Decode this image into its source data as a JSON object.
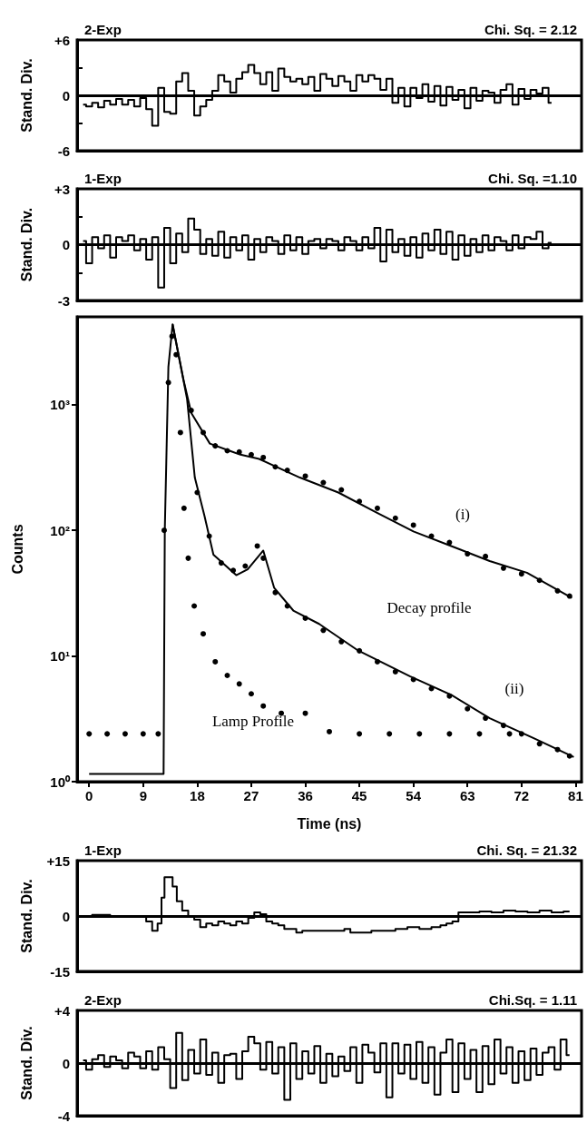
{
  "chart_data": [
    {
      "type": "step",
      "title": "2-Exp",
      "subtitle": "Chi. Sq. = 2.12",
      "ylabel": "Stand. Div.",
      "xlim": [
        -2,
        82
      ],
      "ylim": [
        -6,
        6
      ],
      "yticks": [
        {
          "value": 6,
          "label": "+6"
        },
        {
          "value": 3,
          "label": null
        },
        0,
        {
          "value": -3,
          "label": null
        },
        -6
      ],
      "tick_labels": "y",
      "grid": false,
      "ref_lines": [
        {
          "axis": "y",
          "value": 0,
          "color": "#000000"
        }
      ],
      "x": [
        -1,
        0,
        1,
        2,
        3,
        4,
        5,
        6,
        7,
        8,
        9,
        10,
        11,
        12,
        13,
        14,
        15,
        16,
        17,
        18,
        19,
        20,
        21,
        22,
        23,
        24,
        25,
        26,
        27,
        28,
        29,
        30,
        31,
        32,
        33,
        34,
        35,
        36,
        37,
        38,
        39,
        40,
        41,
        42,
        43,
        44,
        45,
        46,
        47,
        48,
        49,
        50,
        51,
        52,
        53,
        54,
        55,
        56,
        57,
        58,
        59,
        60,
        61,
        62,
        63,
        64,
        65,
        66,
        67,
        68,
        69,
        70,
        71,
        72,
        73,
        74,
        75,
        76,
        77
      ],
      "series": [
        {
          "color": "#000000",
          "values": [
            -1,
            -1.2,
            -0.8,
            -1.3,
            -0.6,
            -1,
            -0.4,
            -1,
            -0.5,
            -1.2,
            -0.3,
            -1.5,
            -3.3,
            0.8,
            -1.8,
            -2,
            1.5,
            2.4,
            0.5,
            -2.2,
            -1.2,
            -0.5,
            0.5,
            2.2,
            1.5,
            0.3,
            1.8,
            2.5,
            3.3,
            2.4,
            1.2,
            2.5,
            0.5,
            2.9,
            2,
            1.5,
            1.8,
            1.2,
            2,
            0.5,
            2.3,
            1.8,
            1,
            2.1,
            1.5,
            0.5,
            2.2,
            1.5,
            2.2,
            1.8,
            0.6,
            1.8,
            -0.8,
            0.8,
            -1.2,
            0.8,
            -0.3,
            1.2,
            -0.7,
            1,
            -1.1,
            0.9,
            -0.5,
            0.6,
            -1.4,
            0.8,
            -0.6,
            0.5,
            0.3,
            -0.8,
            0.6,
            1.2,
            -1,
            0.7,
            -0.4,
            0.6,
            0.2,
            0.8,
            -0.8
          ]
        }
      ]
    },
    {
      "type": "step",
      "title": "1-Exp",
      "subtitle": "Chi. Sq. =1.10",
      "ylabel": "Stand. Div.",
      "xlim": [
        -2,
        82
      ],
      "ylim": [
        -3,
        3
      ],
      "yticks": [
        {
          "value": 3,
          "label": "+3"
        },
        {
          "value": 1.5,
          "label": null
        },
        0,
        {
          "value": -1.5,
          "label": null
        },
        -3
      ],
      "tick_labels": "y",
      "grid": false,
      "ref_lines": [
        {
          "axis": "y",
          "value": 0,
          "color": "#000000"
        }
      ],
      "x": [
        -1,
        0,
        1,
        2,
        3,
        4,
        5,
        6,
        7,
        8,
        9,
        10,
        11,
        12,
        13,
        14,
        15,
        16,
        17,
        18,
        19,
        20,
        21,
        22,
        23,
        24,
        25,
        26,
        27,
        28,
        29,
        30,
        31,
        32,
        33,
        34,
        35,
        36,
        37,
        38,
        39,
        40,
        41,
        42,
        43,
        44,
        45,
        46,
        47,
        48,
        49,
        50,
        51,
        52,
        53,
        54,
        55,
        56,
        57,
        58,
        59,
        60,
        61,
        62,
        63,
        64,
        65,
        66,
        67,
        68,
        69,
        70,
        71,
        72,
        73,
        74,
        75,
        76,
        77
      ],
      "series": [
        {
          "color": "#000000",
          "values": [
            0.2,
            -1,
            0.4,
            -0.2,
            0.5,
            -0.7,
            0.4,
            0.2,
            0.5,
            -0.3,
            0.3,
            -0.8,
            0.4,
            -2.3,
            0.9,
            -1,
            0.6,
            -0.4,
            1.4,
            0.8,
            -0.5,
            0.3,
            -0.6,
            0.7,
            -0.7,
            0.4,
            -0.3,
            0.5,
            -0.8,
            0.3,
            -0.4,
            0.4,
            0.2,
            -0.5,
            0.5,
            -0.3,
            0.4,
            -0.5,
            0.2,
            0.3,
            -0.2,
            0.3,
            0.2,
            -0.3,
            0.4,
            0.2,
            -0.3,
            0.4,
            -0.2,
            0.9,
            -0.9,
            0.8,
            -0.4,
            0.3,
            -0.6,
            0.4,
            -0.7,
            0.6,
            -0.3,
            0.8,
            -0.5,
            0.7,
            -0.8,
            0.5,
            -0.6,
            0.3,
            -0.4,
            0.5,
            -0.3,
            0.4,
            0.2,
            -0.3,
            0.5,
            -0.2,
            0.4,
            0.3,
            0.7,
            -0.2,
            0.1
          ]
        }
      ]
    },
    {
      "type": "line",
      "xlabel": "Time (ns)",
      "ylabel": "Counts",
      "log": "y",
      "xlim": [
        -2,
        82
      ],
      "ylim": [
        1,
        5000
      ],
      "xticks": [
        0,
        9,
        18,
        27,
        36,
        45,
        54,
        63,
        72,
        81
      ],
      "yticks": [
        {
          "value": 1,
          "label": "10⁰"
        },
        {
          "value": 10,
          "label": "10¹"
        },
        {
          "value": 100,
          "label": "10²"
        },
        {
          "value": 1000,
          "label": "10³"
        }
      ],
      "grid": false,
      "annotations": [
        "(i)",
        "(ii)",
        "Decay profile",
        "Lamp Profile"
      ],
      "series": [
        {
          "type": "scatter",
          "marker": "circle",
          "color": "#000000",
          "x": [
            0,
            3,
            6,
            9,
            11.5,
            12.5,
            13.2,
            13.8,
            14.5,
            15.2,
            15.8,
            16.5,
            17.5,
            19,
            21,
            23,
            25,
            27,
            29,
            32,
            36,
            40,
            45,
            50,
            55,
            60,
            65,
            70
          ],
          "values": [
            2.4,
            2.4,
            2.4,
            2.4,
            2.4,
            100,
            1500,
            3500,
            2500,
            600,
            150,
            60,
            25,
            15,
            9,
            7,
            6,
            5,
            4,
            3.5,
            3.5,
            2.5,
            2.4,
            2.4,
            2.4,
            2.4,
            2.4,
            2.4
          ]
        },
        {
          "type": "scatter",
          "marker": "circle",
          "color": "#000000",
          "x": [
            17,
            19,
            21,
            23,
            25,
            27,
            29,
            31,
            33,
            36,
            39,
            42,
            45,
            48,
            51,
            54,
            57,
            60,
            63,
            66,
            69,
            72,
            75,
            78,
            80
          ],
          "values": [
            900,
            600,
            470,
            430,
            420,
            400,
            380,
            320,
            300,
            270,
            240,
            210,
            170,
            150,
            125,
            110,
            90,
            80,
            65,
            62,
            50,
            45,
            40,
            33,
            30
          ]
        },
        {
          "type": "scatter",
          "marker": "circle",
          "color": "#000000",
          "x": [
            18,
            20,
            22,
            24,
            26,
            28,
            29,
            31,
            33,
            36,
            39,
            42,
            45,
            48,
            51,
            54,
            57,
            60,
            63,
            66,
            69,
            72,
            75,
            78,
            80
          ],
          "values": [
            200,
            90,
            55,
            48,
            52,
            75,
            60,
            32,
            25,
            20,
            16,
            13,
            11,
            9,
            7.5,
            6.5,
            5.5,
            4.8,
            3.8,
            3.2,
            2.8,
            2.4,
            2,
            1.8,
            1.6
          ]
        },
        {
          "type": "line",
          "color": "#000000",
          "x": [
            0,
            12.4,
            12.6,
            13.2,
            13.9,
            15.7,
            17,
            20.1,
            25.2,
            28.3,
            35.1,
            41.5,
            47.8,
            54,
            60.3,
            66.7,
            72.9,
            80.4
          ],
          "values": [
            1.15,
            1.15,
            100,
            2000,
            4360,
            1590,
            860,
            490,
            400,
            370,
            263,
            200,
            139,
            98,
            75,
            57,
            46,
            29
          ]
        },
        {
          "type": "line",
          "color": "#000000",
          "x": [
            13.9,
            16.3,
            17.6,
            19.2,
            20.7,
            24.5,
            26.4,
            29,
            30.8,
            34,
            38.3,
            44.6,
            53.4,
            60.3,
            66.7,
            74.2,
            80.7
          ],
          "values": [
            4360,
            1120,
            263,
            131,
            64,
            44,
            49,
            69,
            35,
            23,
            18,
            11.2,
            6.9,
            4.9,
            3.2,
            2.2,
            1.57
          ]
        }
      ]
    },
    {
      "type": "step",
      "title": "1-Exp",
      "subtitle": "Chi. Sq. = 21.32",
      "ylabel": "Stand. Div.",
      "xlim": [
        -2,
        82
      ],
      "ylim": [
        -15,
        15
      ],
      "yticks": [
        {
          "value": 15,
          "label": "+15"
        },
        0,
        -15
      ],
      "tick_labels": "y",
      "grid": false,
      "ref_lines": [
        {
          "axis": "y",
          "value": 0,
          "color": "#000000"
        }
      ],
      "x": [
        -1,
        2,
        5,
        9,
        10,
        11,
        11.8,
        12.3,
        12.8,
        13.6,
        14.2,
        15,
        16,
        17,
        18,
        19,
        20,
        21,
        22,
        23,
        24,
        25,
        26,
        27,
        28,
        29,
        30,
        31,
        32,
        33,
        34,
        35,
        36,
        38,
        40,
        42,
        43,
        44,
        46,
        48,
        50,
        52,
        54,
        56,
        58,
        59,
        60,
        61,
        62,
        64,
        66,
        68,
        70,
        72,
        74,
        76,
        78,
        80
      ],
      "series": [
        {
          "color": "#000000",
          "values": [
            0,
            0.3,
            0,
            0,
            -1.5,
            -4,
            -2,
            5,
            10.5,
            10.5,
            8,
            4,
            1.5,
            0,
            -1,
            -3,
            -2,
            -2.5,
            -1.5,
            -2,
            -2.5,
            -1.5,
            -2,
            -0.5,
            1,
            0.5,
            -1.5,
            -2,
            -2.5,
            -3.5,
            -3.5,
            -4.5,
            -4,
            -4,
            -4,
            -4,
            -3.5,
            -4.5,
            -4.5,
            -4,
            -4,
            -3.5,
            -3,
            -3.5,
            -3,
            -2.5,
            -2,
            -1.5,
            1,
            1,
            1.2,
            1,
            1.5,
            1.2,
            1,
            1.5,
            1,
            1.2
          ]
        }
      ]
    },
    {
      "type": "step",
      "title": "2-Exp",
      "subtitle": "Chi.Sq. = 1.11",
      "ylabel": "Stand. Div.",
      "xlim": [
        -2,
        82
      ],
      "ylim": [
        -4,
        4
      ],
      "yticks": [
        {
          "value": 4,
          "label": "+4"
        },
        0,
        -4
      ],
      "tick_labels": "y",
      "grid": false,
      "ref_lines": [
        {
          "axis": "y",
          "value": 0,
          "color": "#000000"
        }
      ],
      "x": [
        -1,
        0,
        1,
        2,
        3,
        4,
        5,
        6,
        7,
        8,
        9,
        10,
        11,
        12,
        13,
        14,
        15,
        16,
        17,
        18,
        19,
        20,
        21,
        22,
        23,
        24,
        25,
        26,
        27,
        28,
        29,
        30,
        31,
        32,
        33,
        34,
        35,
        36,
        37,
        38,
        39,
        40,
        41,
        42,
        43,
        44,
        45,
        46,
        47,
        48,
        49,
        50,
        51,
        52,
        53,
        54,
        55,
        56,
        57,
        58,
        59,
        60,
        61,
        62,
        63,
        64,
        65,
        66,
        67,
        68,
        69,
        70,
        71,
        72,
        73,
        74,
        75,
        76,
        77,
        78,
        79,
        80
      ],
      "series": [
        {
          "color": "#000000",
          "values": [
            0.2,
            -0.5,
            0.3,
            0.6,
            -0.3,
            0.5,
            0.2,
            -0.4,
            0.8,
            0.5,
            -0.4,
            0.9,
            -0.5,
            1.2,
            0.3,
            -1.9,
            2.3,
            -1.3,
            1,
            -0.8,
            1.8,
            -0.9,
            0.8,
            -1.5,
            0.6,
            0.7,
            -1.2,
            0.9,
            2,
            1.5,
            -0.5,
            1.6,
            -0.8,
            1.2,
            -2.8,
            1.5,
            -1.2,
            0.9,
            -0.8,
            1.3,
            -1.5,
            0.7,
            -1,
            0.5,
            -0.6,
            1.2,
            -1.5,
            1.4,
            0.8,
            -0.7,
            1.5,
            -2.6,
            1.5,
            -0.8,
            1.4,
            -1.2,
            1.6,
            -1.5,
            1.2,
            -2.4,
            0.8,
            1.8,
            -2.2,
            1.5,
            -1.2,
            1,
            -2.2,
            1.3,
            -1.6,
            1.8,
            -0.8,
            1.2,
            -1.5,
            0.9,
            -1.3,
            1.1,
            -0.9,
            0.8,
            1.2,
            -0.5,
            1.8,
            0.6
          ]
        }
      ]
    }
  ]
}
